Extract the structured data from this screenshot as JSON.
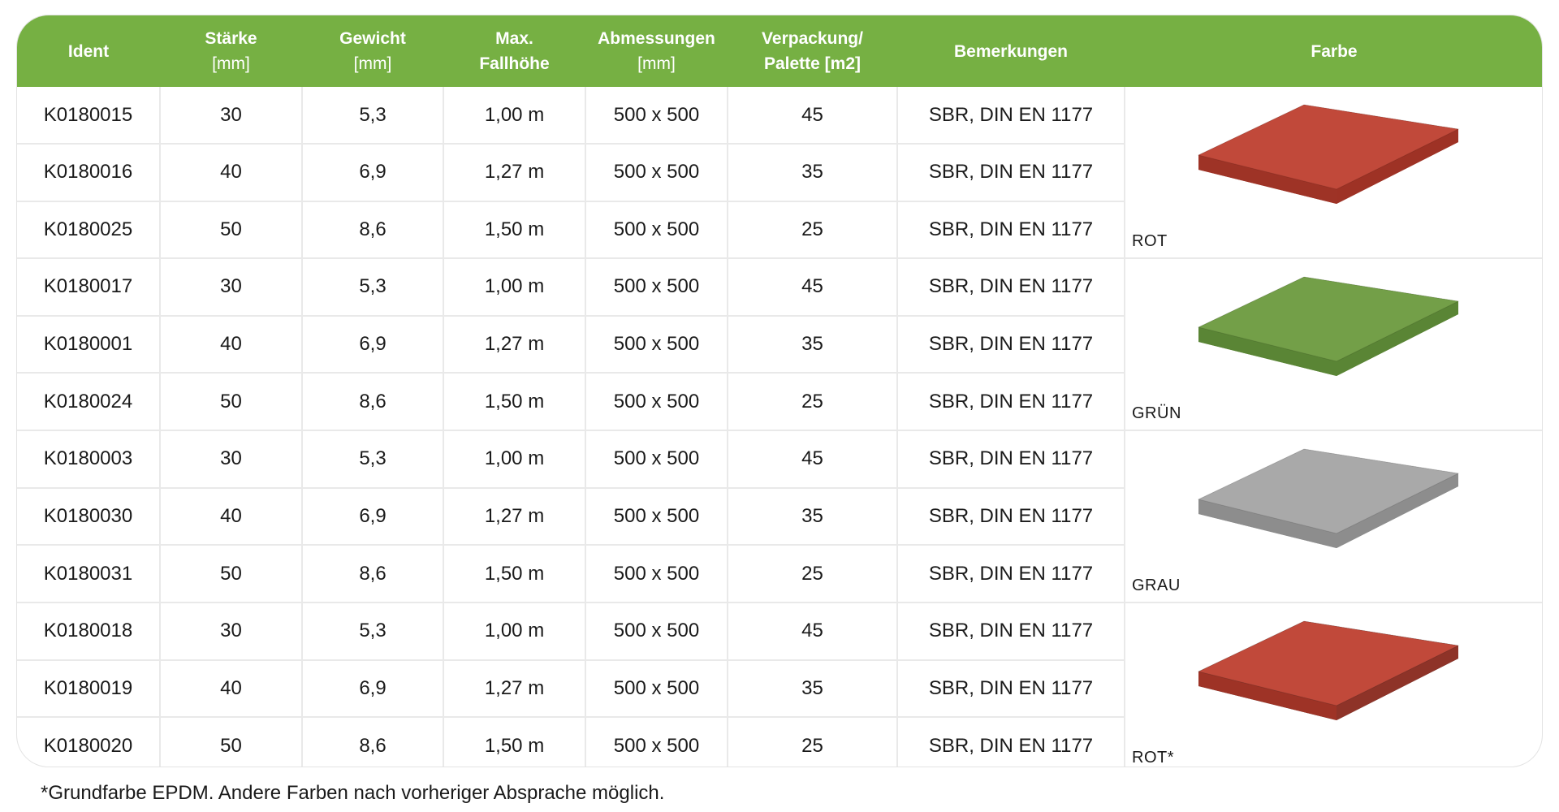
{
  "header": {
    "ident": "Ident",
    "staerke": "Stärke",
    "staerke_unit": "[mm]",
    "gewicht": "Gewicht",
    "gewicht_unit": "[mm]",
    "fall_line1": "Max.",
    "fall_line2": "Fallhöhe",
    "abm": "Abmessungen",
    "abm_unit": "[mm]",
    "verp_line1": "Verpackung/",
    "verp_line2": "Palette [m2]",
    "bem": "Bemerkungen",
    "farbe": "Farbe"
  },
  "rows": [
    {
      "ident": "K0180015",
      "staerke": "30",
      "gewicht": "5,3",
      "fall": "1,00 m",
      "abm": "500 x 500",
      "verp": "45",
      "bem": "SBR, DIN EN 1177"
    },
    {
      "ident": "K0180016",
      "staerke": "40",
      "gewicht": "6,9",
      "fall": "1,27 m",
      "abm": "500 x 500",
      "verp": "35",
      "bem": "SBR, DIN EN 1177"
    },
    {
      "ident": "K0180025",
      "staerke": "50",
      "gewicht": "8,6",
      "fall": "1,50 m",
      "abm": "500 x 500",
      "verp": "25",
      "bem": "SBR, DIN EN 1177"
    },
    {
      "ident": "K0180017",
      "staerke": "30",
      "gewicht": "5,3",
      "fall": "1,00 m",
      "abm": "500 x 500",
      "verp": "45",
      "bem": "SBR, DIN EN 1177"
    },
    {
      "ident": "K0180001",
      "staerke": "40",
      "gewicht": "6,9",
      "fall": "1,27 m",
      "abm": "500 x 500",
      "verp": "35",
      "bem": "SBR, DIN EN 1177"
    },
    {
      "ident": "K0180024",
      "staerke": "50",
      "gewicht": "8,6",
      "fall": "1,50 m",
      "abm": "500 x 500",
      "verp": "25",
      "bem": "SBR, DIN EN 1177"
    },
    {
      "ident": "K0180003",
      "staerke": "30",
      "gewicht": "5,3",
      "fall": "1,00 m",
      "abm": "500 x 500",
      "verp": "45",
      "bem": "SBR, DIN EN 1177"
    },
    {
      "ident": "K0180030",
      "staerke": "40",
      "gewicht": "6,9",
      "fall": "1,27 m",
      "abm": "500 x 500",
      "verp": "35",
      "bem": "SBR, DIN EN 1177"
    },
    {
      "ident": "K0180031",
      "staerke": "50",
      "gewicht": "8,6",
      "fall": "1,50 m",
      "abm": "500 x 500",
      "verp": "25",
      "bem": "SBR, DIN EN 1177"
    },
    {
      "ident": "K0180018",
      "staerke": "30",
      "gewicht": "5,3",
      "fall": "1,00 m",
      "abm": "500 x 500",
      "verp": "45",
      "bem": "SBR, DIN EN 1177"
    },
    {
      "ident": "K0180019",
      "staerke": "40",
      "gewicht": "6,9",
      "fall": "1,27 m",
      "abm": "500 x 500",
      "verp": "35",
      "bem": "SBR, DIN EN 1177"
    },
    {
      "ident": "K0180020",
      "staerke": "50",
      "gewicht": "8,6",
      "fall": "1,50 m",
      "abm": "500 x 500",
      "verp": "25",
      "bem": "SBR, DIN EN 1177"
    }
  ],
  "colors": [
    {
      "label": "ROT",
      "top": "#c1493a",
      "side": "#9e3326",
      "base": "#9e3326"
    },
    {
      "label": "GRÜN",
      "top": "#739f48",
      "side": "#5a8535",
      "base": "#5a8535"
    },
    {
      "label": "GRAU",
      "top": "#a9a9a9",
      "side": "#8d8d8d",
      "base": "#8d8d8d"
    },
    {
      "label": "ROT*",
      "top": "#c1493a",
      "side": "#9e3326",
      "base": "#3a3a3a"
    }
  ],
  "theme": {
    "header_green": "#76b043"
  },
  "footnote": "*Grundfarbe EPDM. Andere Farben nach vorheriger Absprache möglich."
}
